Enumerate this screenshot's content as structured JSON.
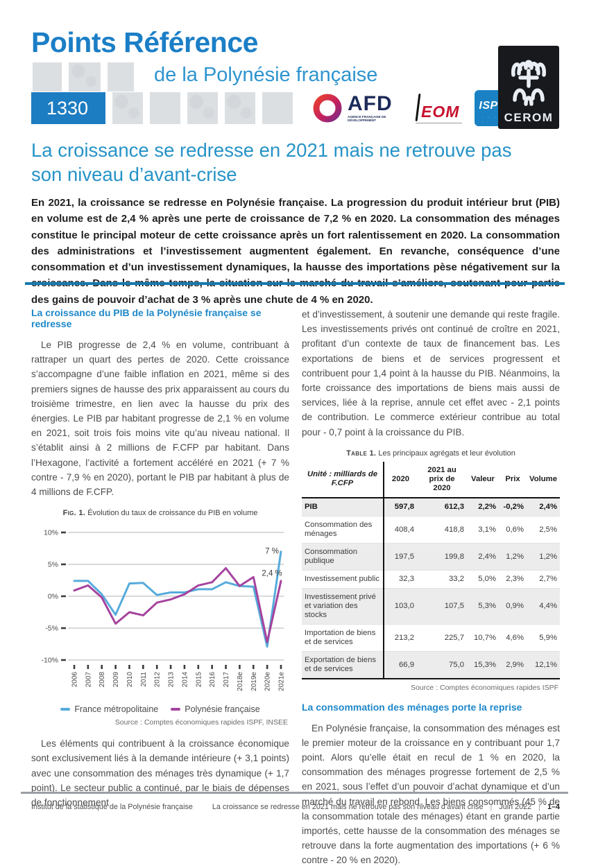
{
  "header": {
    "title": "Points Référence",
    "subtitle": "de la Polynésie française",
    "issue_number": "1330",
    "logos": {
      "afd_name": "AFD",
      "afd_sub": "AGENCE FRANÇAISE DE DÉVELOPPEMENT",
      "ieom_name": "EOM",
      "ispf_name": "ISPF",
      "ispf_dots": "· · · · ·",
      "cerom_name": "CEROM"
    }
  },
  "article": {
    "title": "La croissance se redresse en 2021 mais ne retrouve pas son niveau d’avant-crise",
    "intro": "En 2021, la croissance se redresse en Polynésie française. La progression du produit intérieur brut (PIB) en volume est de 2,4 % après une perte de croissance de 7,2 % en 2020. La consommation des ménages constitue le principal moteur de cette croissance après un fort ralentissement en 2020. La consommation des administrations et l’investissement augmentent également. En revanche, conséquence d’une consommation et d’un investissement dynamiques, la hausse des importations pèse négativement sur la croissance. Dans le même temps, la situation sur le marché du travail s’améliore, soutenant pour partie des gains de pouvoir d’achat de 3 % après une chute de 4 % en 2020."
  },
  "left_column": {
    "section1_heading": "La croissance du PIB de la Polynésie française se redresse",
    "section1_body": "Le PIB progresse de 2,4 % en volume, contribuant à rattraper un quart des pertes de 2020. Cette croissance s’accompagne d’une faible inflation en 2021, même si des premiers signes de hausse des prix apparaissent au cours du troisième trimestre, en lien avec la hausse du prix des énergies. Le PIB par habitant progresse de 2,1 % en volume en 2021, soit trois fois moins vite qu’au niveau national. Il s’établit ainsi à 2 millions de F.CFP par habitant. Dans l’Hexagone, l’activité a fortement accéléré en 2021 (+ 7 % contre - 7,9 % en 2020), portant le PIB par habitant à plus de 4 millions de F.CFP.",
    "fig_label": "Fig. 1.",
    "fig_caption": "Évolution du taux de croissance du PIB en volume",
    "fig_source": "Source : Comptes économiques rapides   ISPF, INSEE",
    "section1_body2": "Les éléments qui contribuent à la croissance économique sont exclusivement liés à la demande intérieure (+ 3,1 points) avec une consommation des ménages très dynamique (+ 1,7 point). Le secteur public a continué, par le biais de dépenses de fonctionnement"
  },
  "right_column": {
    "body1": "et d’investissement, à soutenir une demande qui reste fragile. Les investissements privés ont continué de croître en 2021, profitant d’un contexte de taux de financement bas. Les exportations de biens et de services progressent et contribuent pour 1,4 point à la hausse du PIB. Néanmoins, la forte croissance des importations de biens mais aussi de services, liée à la reprise, annule cet effet avec - 2,1 points de contribution. Le commerce extérieur contribue au total pour - 0,7 point à la croissance du PIB.",
    "table_label": "Table 1.",
    "table_caption": "Les principaux agrégats et leur évolution",
    "table": {
      "unit_label": "Unité : milliards de F.CFP",
      "columns": [
        "2020",
        "2021 au prix de 2020",
        "Valeur",
        "Prix",
        "Volume"
      ],
      "rows": [
        {
          "label": "PIB",
          "values": [
            "597,8",
            "612,3",
            "2,2%",
            "-0,2%",
            "2,4%"
          ],
          "bold": true
        },
        {
          "label": "Consommation des ménages",
          "values": [
            "408,4",
            "418,8",
            "3,1%",
            "0,6%",
            "2,5%"
          ],
          "bold": false
        },
        {
          "label": "Consommation publique",
          "values": [
            "197,5",
            "199,8",
            "2,4%",
            "1,2%",
            "1,2%"
          ],
          "bold": false
        },
        {
          "label": "Investissement public",
          "values": [
            "32,3",
            "33,2",
            "5,0%",
            "2,3%",
            "2,7%"
          ],
          "bold": false
        },
        {
          "label": "Investissement privé et variation des stocks",
          "values": [
            "103,0",
            "107,5",
            "5,3%",
            "0,9%",
            "4,4%"
          ],
          "bold": false
        },
        {
          "label": "Importation de biens et de services",
          "values": [
            "213,2",
            "225,7",
            "10,7%",
            "4,6%",
            "5,9%"
          ],
          "bold": false
        },
        {
          "label": "Exportation de biens et de services",
          "values": [
            "66,9",
            "75,0",
            "15,3%",
            "2,9%",
            "12,1%"
          ],
          "bold": false
        }
      ]
    },
    "table_source": "Source : Comptes économiques rapides   ISPF",
    "section2_heading": "La consommation des ménages porte la reprise",
    "section2_body": "En Polynésie française, la consommation des ménages est le premier moteur de la croissance en y contribuant pour 1,7 point. Alors qu’elle était en recul de 1 % en 2020, la consommation des ménages progresse fortement de 2,5 % en 2021, sous l’effet d’un pouvoir d’achat dynamique et d’un marché du travail en rebond. Les biens consommés (45 % de la consommation totale des ménages) étant en grande partie importés, cette hausse de la consommation des ménages se retrouve dans la forte augmentation des importations (+ 6 % contre - 20 % en 2020)."
  },
  "footer": {
    "left": "Institut de la statistique de la Polynésie française",
    "title": "La croissance se redresse en 2021 mais ne retrouve pas son niveau d’avant crise",
    "date": "Juin 2022",
    "pages": "1–4"
  },
  "chart_data": {
    "type": "line",
    "title": "Évolution du taux de croissance du PIB en volume",
    "x": [
      "2006",
      "2007",
      "2008",
      "2009",
      "2010",
      "2011",
      "2012",
      "2013",
      "2014",
      "2015",
      "2016",
      "2017",
      "2018e",
      "2019e",
      "2020e",
      "2021e"
    ],
    "series": [
      {
        "name": "France métropolitaine",
        "color": "#56abdb",
        "values": [
          2.4,
          2.4,
          0.3,
          -2.9,
          2.0,
          2.1,
          0.2,
          0.6,
          0.6,
          1.1,
          1.1,
          2.2,
          1.6,
          1.5,
          -7.9,
          7.0
        ]
      },
      {
        "name": "Polynésie française",
        "color": "#a5439e",
        "values": [
          0.9,
          1.7,
          -0.2,
          -4.3,
          -2.5,
          -3.0,
          -1.0,
          -0.5,
          0.3,
          1.7,
          2.2,
          4.4,
          1.6,
          3.0,
          -7.2,
          2.4
        ]
      }
    ],
    "ylim": [
      -10,
      10
    ],
    "yticks": [
      {
        "v": 10,
        "label": "10%"
      },
      {
        "v": 5,
        "label": "5%"
      },
      {
        "v": 0,
        "label": "0%"
      },
      {
        "v": -5,
        "label": "-5%"
      },
      {
        "v": -10,
        "label": "-10%"
      }
    ],
    "grid": true,
    "legend_position": "bottom",
    "annotations": [
      {
        "x": 14.35,
        "y": 6.7,
        "text": "7 %"
      },
      {
        "x": 14.35,
        "y": 3.2,
        "text": "2,4 %"
      }
    ]
  },
  "colors": {
    "brand_blue": "#1b7ec6",
    "subtitle_blue": "#2e94cf",
    "issue_box_blue": "#1d7dc2",
    "article_title_blue": "#2693c7",
    "section_heading_blue": "#1e88c9",
    "rule_blue": "#1779ae",
    "chart_france_blue": "#56abdb",
    "chart_polynesie_magenta": "#a5439e",
    "table_shaded_row": "#ececec"
  }
}
